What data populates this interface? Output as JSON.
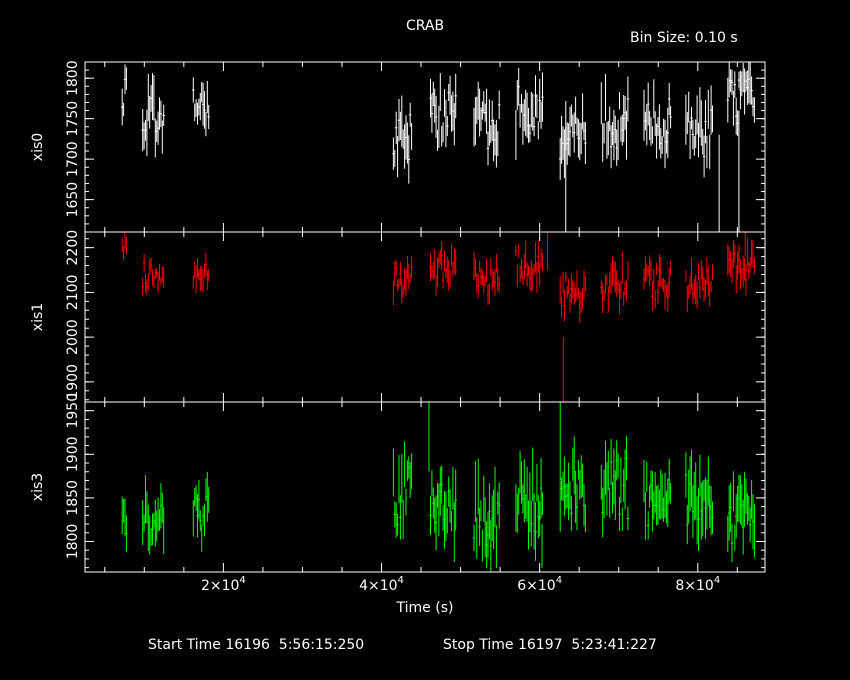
{
  "chart_data": {
    "type": "line",
    "title": "CRAB",
    "bin_size_label": "Bin Size: 0.10 s",
    "xlabel": "Time (s)",
    "xlim": [
      2500,
      88500
    ],
    "x_ticks": [
      {
        "value": 20000,
        "mantissa": "2",
        "exponent": "4"
      },
      {
        "value": 40000,
        "mantissa": "4",
        "exponent": "4"
      },
      {
        "value": 60000,
        "mantissa": "6",
        "exponent": "4"
      },
      {
        "value": 80000,
        "mantissa": "8",
        "exponent": "4"
      }
    ],
    "footer": {
      "start_label": "Start Time 16196  5:56:15:250",
      "stop_label": "Stop Time 16197  5:23:41:227"
    },
    "panels": [
      {
        "name": "xis0",
        "color": "#ffffff",
        "ylim": [
          1610,
          1820
        ],
        "ticks": [
          {
            "value": 1650,
            "label": "1650"
          },
          {
            "value": 1700,
            "label": "1700"
          },
          {
            "value": 1750,
            "label": "1750"
          },
          {
            "value": 1800,
            "label": "1800"
          }
        ],
        "segments": [
          {
            "x0": 7200,
            "x1": 7800,
            "mean": 1785,
            "spread": 32
          },
          {
            "x0": 9800,
            "x1": 12500,
            "mean": 1750,
            "spread": 38
          },
          {
            "x0": 16200,
            "x1": 18200,
            "mean": 1760,
            "spread": 36
          },
          {
            "x0": 41500,
            "x1": 43900,
            "mean": 1730,
            "spread": 40
          },
          {
            "x0": 46200,
            "x1": 49500,
            "mean": 1755,
            "spread": 40
          },
          {
            "x0": 51700,
            "x1": 55000,
            "mean": 1745,
            "spread": 40
          },
          {
            "x0": 57000,
            "x1": 60500,
            "mean": 1760,
            "spread": 40
          },
          {
            "x0": 62600,
            "x1": 65800,
            "mean": 1730,
            "spread": 40
          },
          {
            "x0": 67800,
            "x1": 71200,
            "mean": 1745,
            "spread": 40
          },
          {
            "x0": 73200,
            "x1": 76700,
            "mean": 1745,
            "spread": 40
          },
          {
            "x0": 78500,
            "x1": 82000,
            "mean": 1735,
            "spread": 40
          },
          {
            "x0": 83800,
            "x1": 87200,
            "mean": 1770,
            "spread": 40
          }
        ],
        "spikes": [
          {
            "x": 63300,
            "y0": 1740,
            "y1": 1610
          },
          {
            "x": 82700,
            "y0": 1730,
            "y1": 1610
          },
          {
            "x": 85200,
            "y0": 1760,
            "y1": 1610
          }
        ]
      },
      {
        "name": "xis1",
        "color": "#ff0000",
        "ylim": [
          1855,
          2235
        ],
        "ticks": [
          {
            "value": 1900,
            "label": "1900"
          },
          {
            "value": 2000,
            "label": "2000"
          },
          {
            "value": 2100,
            "label": "2100"
          },
          {
            "value": 2200,
            "label": "2200"
          }
        ],
        "segments": [
          {
            "x0": 7200,
            "x1": 7800,
            "mean": 2200,
            "spread": 25
          },
          {
            "x0": 9800,
            "x1": 12500,
            "mean": 2140,
            "spread": 35
          },
          {
            "x0": 16200,
            "x1": 18200,
            "mean": 2150,
            "spread": 40
          },
          {
            "x0": 41500,
            "x1": 43900,
            "mean": 2130,
            "spread": 40
          },
          {
            "x0": 46200,
            "x1": 49500,
            "mean": 2150,
            "spread": 45
          },
          {
            "x0": 51700,
            "x1": 55000,
            "mean": 2130,
            "spread": 45
          },
          {
            "x0": 57000,
            "x1": 60500,
            "mean": 2160,
            "spread": 45
          },
          {
            "x0": 62600,
            "x1": 65800,
            "mean": 2100,
            "spread": 45
          },
          {
            "x0": 67800,
            "x1": 71200,
            "mean": 2120,
            "spread": 45
          },
          {
            "x0": 73200,
            "x1": 76700,
            "mean": 2120,
            "spread": 45
          },
          {
            "x0": 78500,
            "x1": 82000,
            "mean": 2120,
            "spread": 45
          },
          {
            "x0": 83800,
            "x1": 87200,
            "mean": 2160,
            "spread": 45
          }
        ],
        "spikes": [
          {
            "x": 63000,
            "y0": 2000,
            "y1": 1855
          },
          {
            "x": 61000,
            "y0": 2150,
            "y1": 2235
          },
          {
            "x": 86000,
            "y0": 2180,
            "y1": 2235
          }
        ]
      },
      {
        "name": "xis3",
        "color": "#00ff00",
        "ylim": [
          1765,
          1960
        ],
        "ticks": [
          {
            "value": 1800,
            "label": "1800"
          },
          {
            "value": 1850,
            "label": "1850"
          },
          {
            "value": 1900,
            "label": "1900"
          },
          {
            "value": 1950,
            "label": "1950"
          }
        ],
        "segments": [
          {
            "x0": 7200,
            "x1": 7800,
            "mean": 1825,
            "spread": 28
          },
          {
            "x0": 9800,
            "x1": 12500,
            "mean": 1830,
            "spread": 35
          },
          {
            "x0": 16200,
            "x1": 18200,
            "mean": 1830,
            "spread": 38
          },
          {
            "x0": 41500,
            "x1": 43900,
            "mean": 1855,
            "spread": 45
          },
          {
            "x0": 46200,
            "x1": 49500,
            "mean": 1840,
            "spread": 45
          },
          {
            "x0": 51700,
            "x1": 55000,
            "mean": 1830,
            "spread": 45
          },
          {
            "x0": 57000,
            "x1": 60500,
            "mean": 1845,
            "spread": 45
          },
          {
            "x0": 62600,
            "x1": 65800,
            "mean": 1855,
            "spread": 45
          },
          {
            "x0": 67800,
            "x1": 71200,
            "mean": 1860,
            "spread": 45
          },
          {
            "x0": 73200,
            "x1": 76700,
            "mean": 1850,
            "spread": 45
          },
          {
            "x0": 78500,
            "x1": 82000,
            "mean": 1855,
            "spread": 45
          },
          {
            "x0": 83800,
            "x1": 87200,
            "mean": 1830,
            "spread": 40
          }
        ],
        "spikes": [
          {
            "x": 46000,
            "y0": 1880,
            "y1": 1960
          },
          {
            "x": 62600,
            "y0": 1870,
            "y1": 1960
          },
          {
            "x": 60300,
            "y0": 1820,
            "y1": 1770
          }
        ]
      }
    ]
  }
}
